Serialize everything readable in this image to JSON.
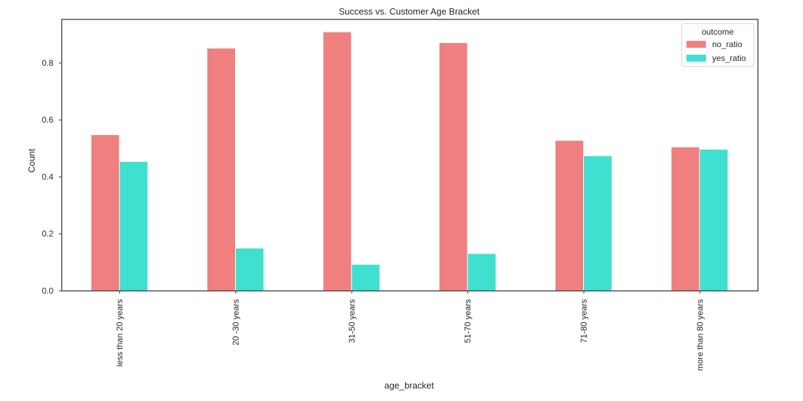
{
  "chart_data": {
    "type": "bar",
    "title": "Success vs. Customer Age Bracket",
    "xlabel": "age_bracket",
    "ylabel": "Count",
    "categories": [
      "less than 20 years",
      "20 -30 years",
      "31-50 years",
      "51-70 years",
      "71-80 years",
      "more than 80 years"
    ],
    "series": [
      {
        "name": "no_ratio",
        "color": "#f08080",
        "values": [
          0.547,
          0.851,
          0.908,
          0.87,
          0.527,
          0.504
        ]
      },
      {
        "name": "yes_ratio",
        "color": "#40e0d0",
        "values": [
          0.453,
          0.149,
          0.092,
          0.13,
          0.473,
          0.496
        ]
      }
    ],
    "yticks": [
      "0.0",
      "0.2",
      "0.4",
      "0.6",
      "0.8"
    ],
    "ylim": [
      0,
      0.953
    ],
    "grid": false,
    "legend": {
      "title": "outcome",
      "position": "top-right"
    }
  }
}
